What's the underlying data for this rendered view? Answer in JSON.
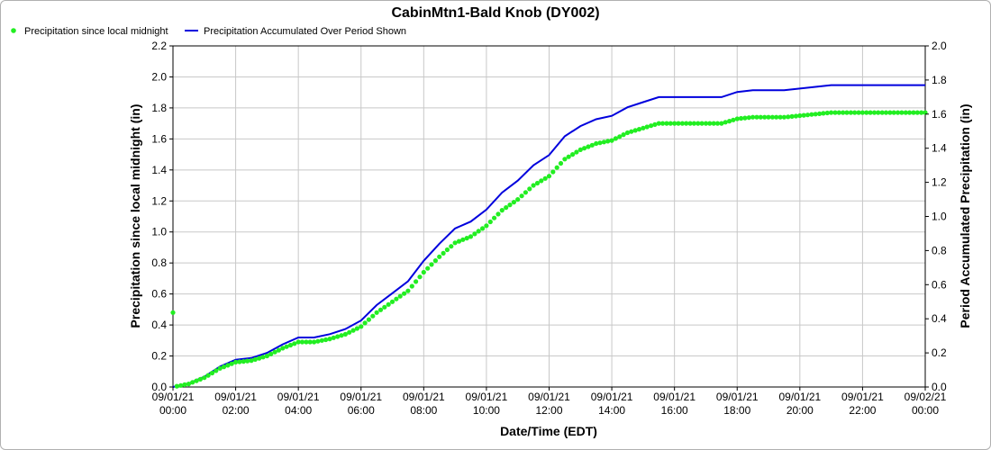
{
  "chart_data": {
    "type": "line",
    "title": "CabinMtn1-Bald Knob (DY002)",
    "xlabel": "Date/Time (EDT)",
    "ylabel": "Precipitation since local midnight (in)",
    "y2label": "Period Accumulated Precipitation (in)",
    "xlim": [
      0,
      24
    ],
    "ylim": [
      0,
      2.2
    ],
    "y2lim": [
      0,
      2.0
    ],
    "grid": true,
    "legend_position": "top-left",
    "x_ticks": [
      {
        "date": "09/01/21",
        "time": "00:00",
        "value": 0
      },
      {
        "date": "09/01/21",
        "time": "02:00",
        "value": 2
      },
      {
        "date": "09/01/21",
        "time": "04:00",
        "value": 4
      },
      {
        "date": "09/01/21",
        "time": "06:00",
        "value": 6
      },
      {
        "date": "09/01/21",
        "time": "08:00",
        "value": 8
      },
      {
        "date": "09/01/21",
        "time": "10:00",
        "value": 10
      },
      {
        "date": "09/01/21",
        "time": "12:00",
        "value": 12
      },
      {
        "date": "09/01/21",
        "time": "14:00",
        "value": 14
      },
      {
        "date": "09/01/21",
        "time": "16:00",
        "value": 16
      },
      {
        "date": "09/01/21",
        "time": "18:00",
        "value": 18
      },
      {
        "date": "09/01/21",
        "time": "20:00",
        "value": 20
      },
      {
        "date": "09/01/21",
        "time": "22:00",
        "value": 22
      },
      {
        "date": "09/02/21",
        "time": "00:00",
        "value": 24
      }
    ],
    "y_ticks": [
      "0.0",
      "0.2",
      "0.4",
      "0.6",
      "0.8",
      "1.0",
      "1.2",
      "1.4",
      "1.6",
      "1.8",
      "2.0",
      "2.2"
    ],
    "y2_ticks": [
      "0.0",
      "0.2",
      "0.4",
      "0.6",
      "0.8",
      "1.0",
      "1.2",
      "1.4",
      "1.6",
      "1.8",
      "2.0"
    ],
    "series": [
      {
        "name": "Precipitation since local midnight",
        "axis": "left",
        "style": "dots",
        "color": "#22ee22",
        "x": [
          0,
          24
        ],
        "y": [
          0.48,
          1.77
        ]
      },
      {
        "name": "Precipitation Accumulated Over Period Shown",
        "axis": "right",
        "style": "line",
        "color": "#0000dd",
        "x": [
          0,
          0.5,
          1,
          1.5,
          2,
          2.5,
          3,
          3.5,
          4,
          4.5,
          5,
          5.5,
          6,
          6.5,
          7,
          7.5,
          8,
          8.5,
          9,
          9.5,
          10,
          10.5,
          11,
          11.5,
          12,
          12.5,
          13,
          13.5,
          14,
          14.5,
          15,
          15.5,
          16,
          16.5,
          17,
          17.5,
          18,
          18.5,
          19,
          19.5,
          20,
          20.5,
          21,
          21.5,
          22,
          22.5,
          23,
          23.5,
          24
        ],
        "y": [
          0,
          0.02,
          0.06,
          0.12,
          0.16,
          0.17,
          0.2,
          0.25,
          0.29,
          0.29,
          0.31,
          0.34,
          0.39,
          0.48,
          0.55,
          0.62,
          0.74,
          0.84,
          0.93,
          0.97,
          1.04,
          1.14,
          1.21,
          1.3,
          1.36,
          1.47,
          1.53,
          1.57,
          1.59,
          1.64,
          1.67,
          1.7,
          1.7,
          1.7,
          1.7,
          1.7,
          1.73,
          1.74,
          1.74,
          1.74,
          1.75,
          1.76,
          1.77,
          1.77,
          1.77,
          1.77,
          1.77,
          1.77,
          1.77
        ]
      }
    ]
  }
}
